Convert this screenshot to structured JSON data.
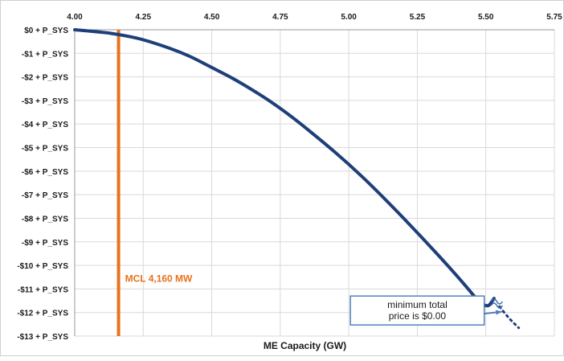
{
  "chart_data": {
    "type": "line",
    "title": "",
    "xlabel": "ME Capacity (GW)",
    "ylabel": "",
    "xlim": [
      4.0,
      5.75
    ],
    "ylim": [
      -13,
      0
    ],
    "x_ticks": [
      "4.00",
      "4.25",
      "4.50",
      "4.75",
      "5.00",
      "5.25",
      "5.50",
      "5.75"
    ],
    "x_tick_values": [
      4.0,
      4.25,
      4.5,
      4.75,
      5.0,
      5.25,
      5.5,
      5.75
    ],
    "y_ticks": [
      "$0 + P_SYS",
      "-$1 + P_SYS",
      "-$2 + P_SYS",
      "-$3 + P_SYS",
      "-$4 + P_SYS",
      "-$5 + P_SYS",
      "-$6 + P_SYS",
      "-$7 + P_SYS",
      "-$8 + P_SYS",
      "-$9 + P_SYS",
      "-$10 + P_SYS",
      "-$11 + P_SYS",
      "-$12 + P_SYS",
      "-$13 + P_SYS"
    ],
    "y_tick_values": [
      0,
      -1,
      -2,
      -3,
      -4,
      -5,
      -6,
      -7,
      -8,
      -9,
      -10,
      -11,
      -12,
      -13
    ],
    "grid": {
      "horizontal": true,
      "vertical": true
    },
    "series": [
      {
        "values_x": [
          4.0,
          4.1,
          4.16,
          4.25,
          4.4,
          4.5,
          4.6,
          4.75,
          4.9,
          5.0,
          5.1,
          5.25,
          5.4,
          5.5,
          5.53
        ],
        "values_y": [
          0,
          -0.1,
          -0.2,
          -0.4,
          -1.0,
          -1.6,
          -2.2,
          -3.3,
          -4.7,
          -5.7,
          -6.8,
          -8.6,
          -10.5,
          -11.9,
          -11.4
        ],
        "color": "#1f3f7a",
        "style": "solid"
      },
      {
        "values_x": [
          5.55,
          5.58,
          5.62
        ],
        "values_y": [
          -11.75,
          -12.2,
          -12.65
        ],
        "color": "#1f3f7a",
        "style": "dotted"
      }
    ],
    "vertical_line": {
      "x": 4.16,
      "label": "MCL 4,160 MW",
      "color": "#e8711c"
    },
    "break_marker": {
      "x": 5.54,
      "y": -11.5
    },
    "annotation": {
      "lines": [
        "minimum total",
        "price is $0.00"
      ],
      "arrow_target": {
        "x": 5.57,
        "y": -11.9
      }
    },
    "colors": {
      "curve": "#1f3f7a",
      "mcl": "#e8711c",
      "grid": "#d9d9d9",
      "callout_border": "#4f81bd"
    }
  }
}
